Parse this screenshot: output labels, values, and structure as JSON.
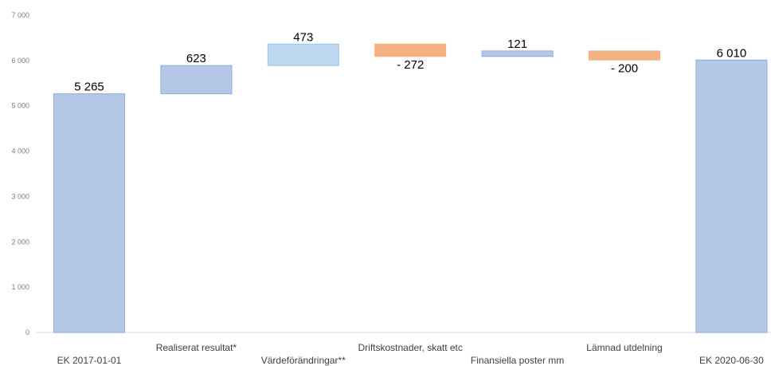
{
  "chart_data": {
    "type": "waterfall",
    "title": "",
    "xlabel": "",
    "ylabel": "",
    "ylim": [
      0,
      7000
    ],
    "yticks": [
      0,
      1000,
      2000,
      3000,
      4000,
      5000,
      6000,
      7000
    ],
    "ytick_labels": [
      "0",
      "1 000",
      "2 000",
      "3 000",
      "4 000",
      "5 000",
      "6 000",
      "7 000"
    ],
    "grid": false,
    "legend": "none",
    "categories": [
      "EK 2017-01-01",
      "Realiserat resultat*",
      "Värdeförändringar**",
      "Driftskostnader, skatt etc",
      "Finansiella poster mm",
      "Lämnad utdelning",
      "EK 2020-06-30"
    ],
    "bars": [
      {
        "start": 0,
        "end": 5265,
        "label": "5 265",
        "kind": "total",
        "color": "#b4c7e7",
        "edge": "#8faadc"
      },
      {
        "start": 5265,
        "end": 5888,
        "label": "623",
        "kind": "increase",
        "color": "#b4c7e7",
        "edge": "#8faadc"
      },
      {
        "start": 5888,
        "end": 6361,
        "label": "473",
        "kind": "increase",
        "color": "#bdd7ee",
        "edge": "#9dc3e6"
      },
      {
        "start": 6361,
        "end": 6089,
        "label": "- 272",
        "kind": "decrease",
        "color": "#f4b183",
        "edge": "#f4b183"
      },
      {
        "start": 6089,
        "end": 6210,
        "label": "121",
        "kind": "increase",
        "color": "#b4c7e7",
        "edge": "#8faadc"
      },
      {
        "start": 6210,
        "end": 6010,
        "label": "- 200",
        "kind": "decrease",
        "color": "#f4b183",
        "edge": "#f4b183"
      },
      {
        "start": 0,
        "end": 6010,
        "label": "6 010",
        "kind": "total",
        "color": "#b4c7e7",
        "edge": "#8faadc"
      }
    ],
    "category_label_rows": [
      1,
      0,
      1,
      0,
      1,
      0,
      1
    ]
  }
}
